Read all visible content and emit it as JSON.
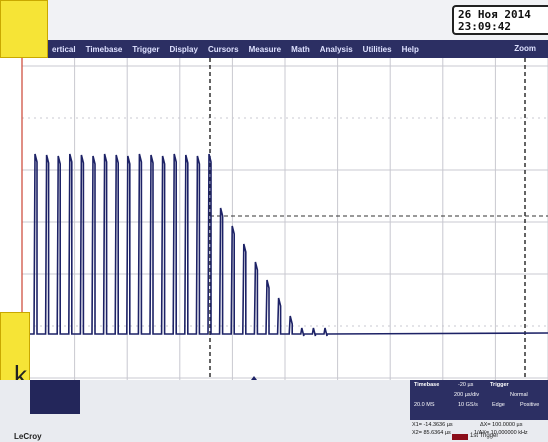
{
  "header": {
    "date": "26 Ноя 2014",
    "time": "23:09:42"
  },
  "menu": [
    "ertical",
    "Timebase",
    "Trigger",
    "Display",
    "Cursors",
    "Measure",
    "Math",
    "Analysis",
    "Utilities",
    "Help"
  ],
  "zoom": "Zoom",
  "overlay": "k",
  "timebase": {
    "title": "Timebase",
    "delay": "-20 µs",
    "div": "200 µs/div",
    "samples": "20.0 MS",
    "rate": "10 GS/s"
  },
  "trigger": {
    "title": "Trigger",
    "mode": "Normal",
    "type": "Edge",
    "slope": "Positive"
  },
  "cursors": {
    "x1": "X1= -14.3636 µs",
    "dx": "ΔX= 100.0000 µs",
    "x2": "X2= 85.6364 µs",
    "inv": "1/ΔX= 10.000000 kHz"
  },
  "brand": "LeCroy",
  "trigger_note": "1st Trigger"
}
